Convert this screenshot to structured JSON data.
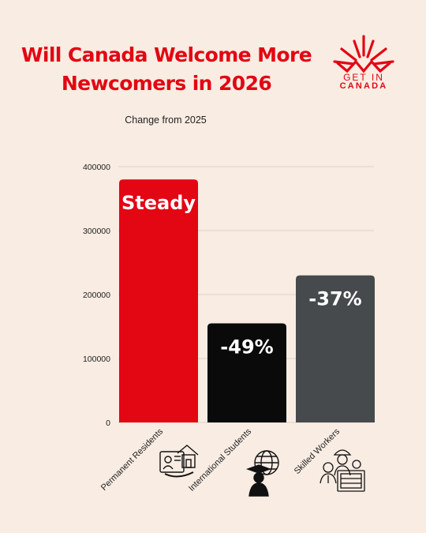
{
  "header": {
    "title_line1": "Will Canada Welcome More",
    "title_line2": "Newcomers in 2026",
    "subtitle": "Change from 2025"
  },
  "logo": {
    "line1": "GET IN",
    "line2": "CANADA",
    "color": "#e30613"
  },
  "chart_data": {
    "type": "bar",
    "title": "Will Canada Welcome More Newcomers in 2026",
    "subtitle": "Change from 2025",
    "categories": [
      "Permanent Residents",
      "International Students",
      "Skilled Workers"
    ],
    "values": [
      380000,
      155000,
      230000
    ],
    "data_labels": [
      "Steady",
      "-49%",
      "-37%"
    ],
    "colors": [
      "#e30613",
      "#0a0a0a",
      "#464a4c"
    ],
    "category_icons": [
      "resident-card-house-icon",
      "student-globe-icon",
      "worker-team-icon"
    ],
    "ylim": [
      0,
      400000
    ],
    "yticks": [
      0,
      100000,
      200000,
      300000,
      400000
    ],
    "ytick_labels": [
      "0",
      "100000",
      "200000",
      "300000",
      "400000"
    ],
    "xlabel": "",
    "ylabel": "",
    "grid": true,
    "legend": "none"
  }
}
